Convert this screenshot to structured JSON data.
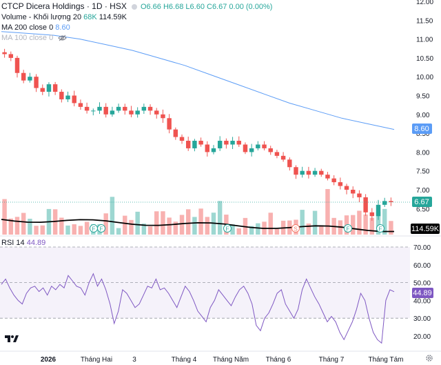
{
  "header": {
    "title": "CTCP Dicera Holdings · 1D · HSX",
    "ohlc": {
      "o": "O6.66",
      "h": "H6.68",
      "l": "L6.60",
      "c": "C6.67",
      "chg": "0.00 (0.00%)"
    }
  },
  "volume_legend": {
    "label": "Volume - Khối lượng 20",
    "v1": "68K",
    "v2": "114.59K"
  },
  "ma200_legend": {
    "label": "MA 200 close 0",
    "value": "8.60"
  },
  "ma100_legend": {
    "label": "MA 100 close 0"
  },
  "rsi_legend": {
    "label": "RSI 14",
    "value": "44.89"
  },
  "badges": {
    "last_price": "6.67",
    "ma200": "8.60",
    "volume": "114.59K",
    "rsi": "44.89"
  },
  "icons": {
    "settings": "gear-icon",
    "logo": "tradingview-logo",
    "visibility": "eye-off-icon"
  },
  "colors": {
    "up": "#26a69a",
    "down": "#ef5350",
    "ma": "#5b9cf6",
    "rsi": "#7e57c2",
    "vol_ma": "#000000"
  },
  "chart_data": [
    {
      "type": "candlestick",
      "y_ticks": [
        "6.50",
        "7.00",
        "7.50",
        "8.00",
        "8.50",
        "9.00",
        "9.50",
        "10.00",
        "10.50",
        "11.00",
        "11.50",
        "12.00"
      ],
      "ylim": [
        6.0,
        12.0
      ],
      "x_ticks": [
        "2026",
        "Tháng Hai",
        "3",
        "Tháng 4",
        "Tháng Năm",
        "Tháng 6",
        "Tháng 7",
        "Tháng Tám"
      ],
      "close_approx": [
        10.6,
        10.5,
        10.1,
        9.9,
        10.0,
        9.7,
        9.6,
        9.8,
        9.6,
        9.4,
        9.5,
        9.3,
        9.2,
        9.1,
        9.1,
        9.2,
        9.0,
        9.1,
        9.2,
        9.1,
        9.0,
        9.1,
        9.2,
        9.1,
        9.0,
        8.9,
        8.6,
        8.4,
        8.3,
        8.1,
        8.3,
        8.2,
        8.0,
        8.1,
        8.3,
        8.2,
        8.3,
        8.2,
        8.0,
        8.1,
        8.2,
        8.1,
        8.0,
        7.9,
        7.8,
        7.6,
        7.4,
        7.5,
        7.4,
        7.5,
        7.4,
        7.3,
        7.2,
        7.1,
        7.0,
        6.9,
        6.8,
        6.4,
        6.3,
        6.6,
        6.7,
        6.67
      ],
      "ma200_approx": [
        11.2,
        11.15,
        11.1,
        11.0,
        10.85,
        10.7,
        10.5,
        10.3,
        10.05,
        9.8,
        9.55,
        9.3,
        9.1,
        8.9,
        8.75,
        8.6
      ],
      "volume_ma_label": "114.59K",
      "markers": [
        "F",
        "F",
        "F",
        "S",
        "F",
        "F"
      ]
    },
    {
      "type": "line",
      "name": "RSI 14",
      "y_ticks": [
        "20.00",
        "30.00",
        "40.00",
        "50.00",
        "60.00",
        "70.00"
      ],
      "ylim": [
        15,
        72
      ],
      "levels": [
        30,
        50,
        70
      ],
      "values_approx": [
        49,
        52,
        47,
        43,
        40,
        38,
        44,
        47,
        48,
        45,
        47,
        43,
        48,
        46,
        49,
        47,
        54,
        51,
        48,
        47,
        43,
        50,
        55,
        48,
        52,
        46,
        38,
        27,
        34,
        46,
        44,
        40,
        36,
        38,
        43,
        48,
        47,
        52,
        46,
        47,
        44,
        40,
        36,
        42,
        48,
        45,
        40,
        34,
        31,
        28,
        36,
        40,
        46,
        43,
        40,
        37,
        42,
        46,
        48,
        44,
        38,
        26,
        23,
        30,
        33,
        38,
        44,
        46,
        38,
        34,
        30,
        35,
        46,
        52,
        47,
        42,
        38,
        33,
        28,
        31,
        28,
        22,
        18,
        23,
        28,
        35,
        44,
        40,
        30,
        22,
        18,
        16,
        40,
        46,
        44.89
      ]
    }
  ]
}
